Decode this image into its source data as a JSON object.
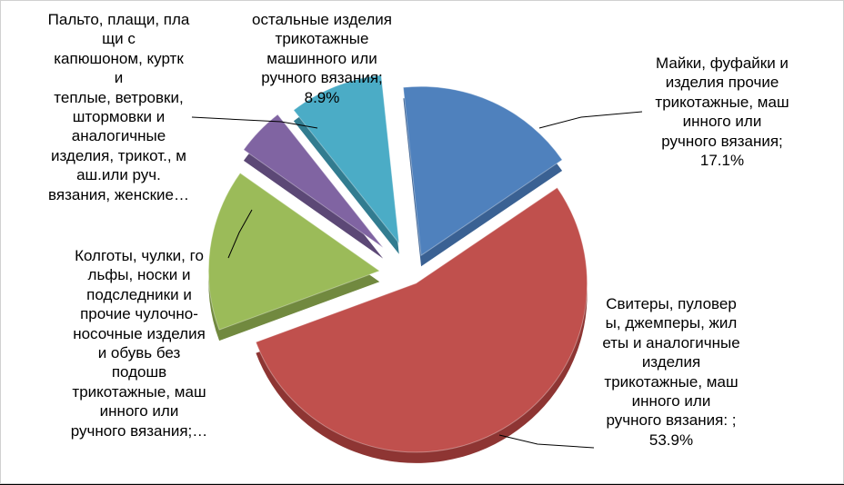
{
  "chart_data": {
    "type": "pie",
    "style": "3d-exploded",
    "title": "",
    "legend": "none",
    "slices": [
      {
        "label": "Майки, фуфайки и изделия прочие трикотажные, маш инного или ручного вязания;",
        "value": 17.1,
        "value_label": "17.1%",
        "color": "#4F81BD",
        "side_color": "#3A6193"
      },
      {
        "label": "Свитеры, пуловер ы, джемперы, жил еты и аналогичные изделия трикотажные, маш инного или ручного вязания: ;",
        "value": 53.9,
        "value_label": "53.9%",
        "color": "#C0504D",
        "side_color": "#8E3533"
      },
      {
        "label": "Колготы, чулки, го льфы, носки и подследники и прочие чулочно-носочные изделия и обувь без подошв трикотажные, маш инного или ручного вязания;…",
        "value": 15.5,
        "value_label": "",
        "color": "#9BBB59",
        "side_color": "#71893F"
      },
      {
        "label": "Пальто, плащи, пла щи с капюшоном, куртк и теплые, ветровки, штормовки и аналогичные изделия, трикот., м аш.или руч. вязания, женские…",
        "value": 4.6,
        "value_label": "",
        "color": "#8064A2",
        "side_color": "#5C4876"
      },
      {
        "label": "остальные изделия трикотажные машинного или ручного вязания;",
        "value": 8.9,
        "value_label": "8.9%",
        "color": "#4BACC6",
        "side_color": "#327C90"
      }
    ]
  },
  "labels": {
    "maiki": "Майки, фуфайки и\nизделия прочие\nтрикотажные, маш\nинного или\nручного вязания;\n17.1%",
    "svitery": "Свитеры, пуловер\nы, джемперы, жил\nеты и аналогичные\nизделия\nтрикотажные, маш\nинного или\nручного вязания: ;\n53.9%",
    "kolgoty": "Колготы, чулки, го\nльфы, носки и\nподследники и\nпрочие чулочно-\nносочные изделия\nи обувь без\nподошв\nтрикотажные, маш\nинного или\nручного вязания;…",
    "palto": "Пальто, плащи, пла\nщи с\nкапюшоном, куртк\nи\nтеплые, ветровки,\nштормовки и\nаналогичные\nизделия, трикот., м\nаш.или руч.\nвязания, женские…",
    "ostalnye": "остальные изделия\nтрикотажные\nмашинного или\nручного вязания;\n8.9%"
  }
}
